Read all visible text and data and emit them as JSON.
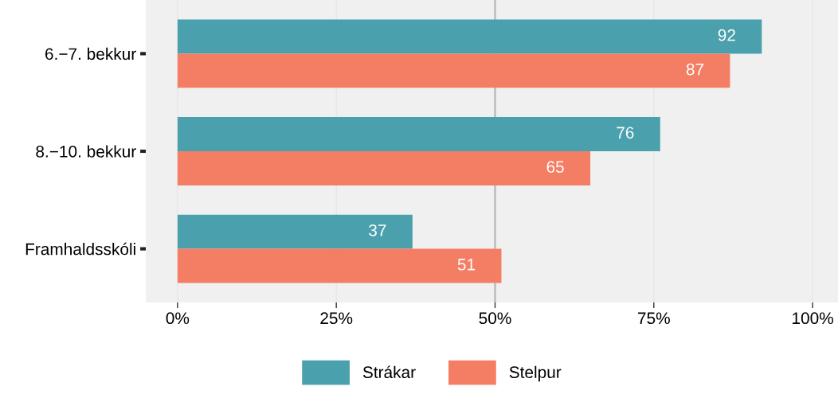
{
  "chart_data": {
    "type": "bar",
    "orientation": "horizontal",
    "categories": [
      "6.−7. bekkur",
      "8.−10. bekkur",
      "Framhaldsskóli"
    ],
    "series": [
      {
        "name": "Strákar",
        "color": "#4ba0ad",
        "values": [
          92,
          76,
          37
        ]
      },
      {
        "name": "Stelpur",
        "color": "#f47e64",
        "values": [
          87,
          65,
          51
        ]
      }
    ],
    "xlim": [
      -5,
      104
    ],
    "xticks": [
      {
        "value": 0,
        "label": "0%"
      },
      {
        "value": 25,
        "label": "25%"
      },
      {
        "value": 50,
        "label": "50%"
      },
      {
        "value": 75,
        "label": "75%"
      },
      {
        "value": 100,
        "label": "100%"
      }
    ],
    "ref_lines": [
      {
        "axis": "x",
        "value": 50,
        "color": "#c0c0c0"
      }
    ],
    "grid": "x",
    "legend": "bottom",
    "data_labels": true
  }
}
